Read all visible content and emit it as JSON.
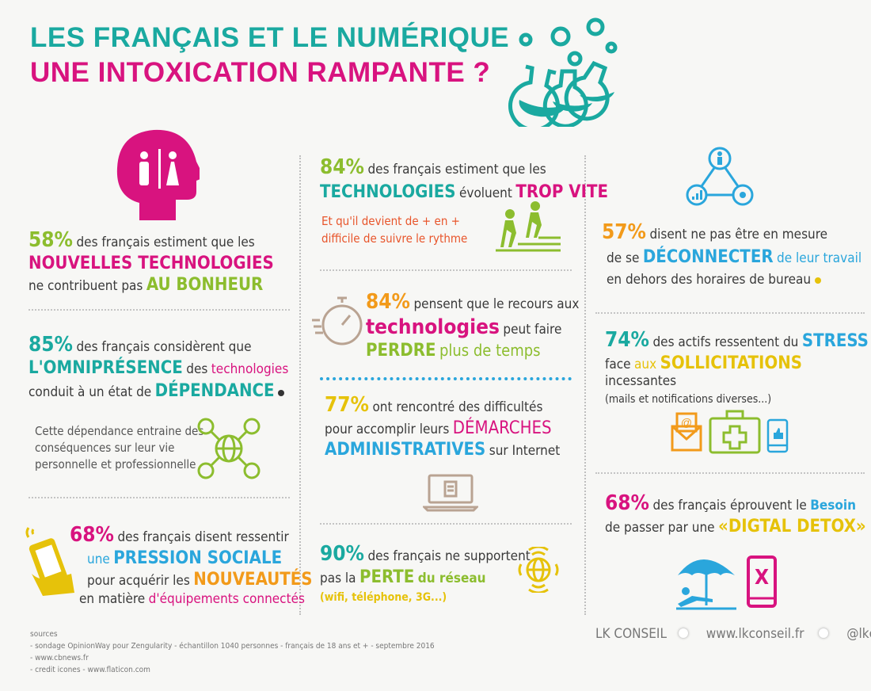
{
  "header": {
    "title_line1": "LES FRANÇAIS ET LE NUMÉRIQUE",
    "title_line2": "UNE INTOXICATION RAMPANTE ?"
  },
  "colors": {
    "teal": "#1aa9a0",
    "magenta": "#d8137f",
    "green": "#8cbd2e",
    "orange": "#f29a1a",
    "blue": "#2aa6dc",
    "yellow": "#e6c20a"
  },
  "left": {
    "s1": {
      "pct": "58%",
      "t1": "des français estiment que les",
      "t2": "NOUVELLES TECHNOLOGIES",
      "t3": "ne contribuent pas",
      "t4": "AU BONHEUR",
      "icon": "head-toilet-icon"
    },
    "s2": {
      "pct": "85%",
      "t1": "des français considèrent que",
      "t2a": "L'OMNIPRÉSENCE",
      "t2b": "des",
      "t2c": "technologies",
      "t3a": "conduit à un état de",
      "t3b": "DÉPENDANCE",
      "note1": "Cette dépendance entraine des",
      "note2": "conséquences sur leur vie",
      "note3": "personnelle et professionnelle",
      "icon": "network-globe-icon"
    },
    "s3": {
      "pct": "68%",
      "t1": "des français disent ressentir",
      "t2a": "une",
      "t2b": "PRESSION SOCIALE",
      "t3a": "pour acquérir les",
      "t3b": "NOUVEAUTÉS",
      "t4a": "en matière",
      "t4b": "d'équipements connectés",
      "icon": "hand-phone-icon"
    }
  },
  "middle": {
    "s1": {
      "pct": "84%",
      "t1": "des français estiment que les",
      "t2a": "TECHNOLOGIES",
      "t2b": "évoluent",
      "t2c": "TROP VITE",
      "note1": "Et qu'il devient de + en +",
      "note2": "difficile de suivre le rythme",
      "icon": "climbing-people-icon"
    },
    "s2": {
      "pct": "84%",
      "t1": "pensent que le recours aux",
      "t2a": "technologies",
      "t2b": "peut faire",
      "t3a": "PERDRE",
      "t3b": "plus de temps",
      "icon": "stopwatch-icon"
    },
    "s3": {
      "pct": "77%",
      "t1": "ont rencontré des difficultés",
      "t2a": "pour accomplir leurs",
      "t2b": "DÉMARCHES",
      "t3a": "ADMINISTRATIVES",
      "t3b": "sur Internet",
      "icon": "laptop-icon"
    },
    "s4": {
      "pct": "90%",
      "t1": "des français ne supportent",
      "t2a": "pas la",
      "t2b": "PERTE",
      "t2c": "du réseau",
      "t3": "(wifi, téléphone, 3G...)",
      "icon": "globe-signal-icon"
    }
  },
  "right": {
    "s1": {
      "pct": "57%",
      "t1": "disent ne pas être en mesure",
      "t2a": "de se",
      "t2b": "DÉCONNECTER",
      "t2c": "de leur travail",
      "t3": "en dehors des horaires de bureau",
      "icon": "network-person-icon"
    },
    "s2": {
      "pct": "74%",
      "t1": "des actifs ressentent du",
      "t1b": "STRESS",
      "t2a": "face",
      "t2b": "aux",
      "t2c": "SOLLICITATIONS",
      "t2d": "incessantes",
      "t3": "(mails et notifications diverses...)",
      "icons": [
        "email-icon",
        "first-aid-kit-icon",
        "phone-like-icon"
      ]
    },
    "s3": {
      "pct": "68%",
      "t1": "des français éprouvent le",
      "t1b": "Besoin",
      "t2a": "de passer par une",
      "t2b": "«DIGTAL DETOX»",
      "icons": [
        "beach-umbrella-icon",
        "phone-x-icon"
      ],
      "x_label": "X"
    }
  },
  "footer": {
    "sources_title": "sources",
    "src1": "- sondage OpinionWay pour Zengularity - échantillon 1040 personnes - français de 18 ans et + - septembre 2016",
    "src2": "- www.cbnews.fr",
    "src3": "- credit icones - www.flaticon.com",
    "brand": "LK CONSEIL",
    "website": "www.lkconseil.fr",
    "handle": "@lkconseil"
  }
}
